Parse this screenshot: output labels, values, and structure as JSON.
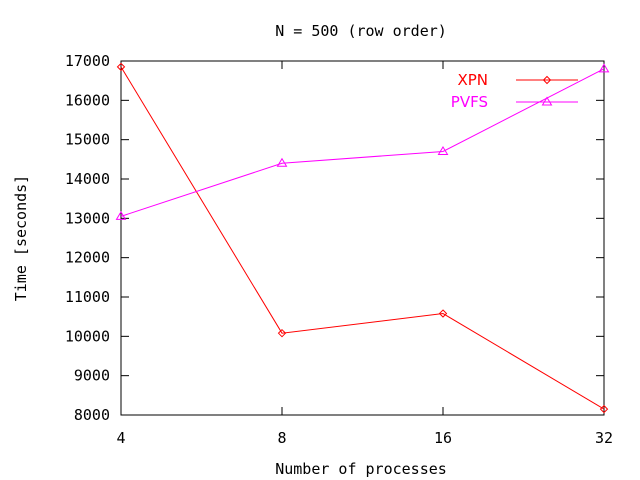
{
  "chart_data": {
    "type": "line",
    "title": "N = 500 (row order)",
    "xlabel": "Number of processes",
    "ylabel": "Time [seconds]",
    "categories": [
      "4",
      "8",
      "16",
      "32"
    ],
    "ylim": [
      8000,
      17000
    ],
    "yticks": [
      "8000",
      "9000",
      "10000",
      "11000",
      "12000",
      "13000",
      "14000",
      "15000",
      "16000",
      "17000"
    ],
    "grid": false,
    "legend_position": "top-right",
    "series": [
      {
        "name": "XPN",
        "color": "#ff0000",
        "marker": "diamond",
        "values": [
          16850,
          10080,
          10580,
          8150
        ]
      },
      {
        "name": "PVFS",
        "color": "#ff00ff",
        "marker": "triangle",
        "values": [
          13050,
          14400,
          14700,
          16800
        ]
      }
    ]
  }
}
